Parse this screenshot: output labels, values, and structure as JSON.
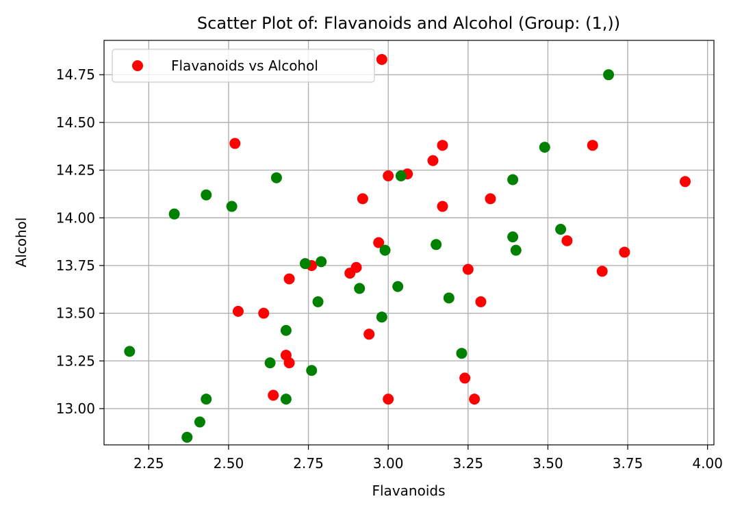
{
  "chart_data": {
    "type": "scatter",
    "title": "Scatter Plot of: Flavanoids and Alcohol (Group: (1,))",
    "xlabel": "Flavanoids",
    "ylabel": "Alcohol",
    "xlim": [
      2.11,
      4.02
    ],
    "ylim": [
      12.81,
      14.93
    ],
    "xticks": [
      2.25,
      2.5,
      2.75,
      3.0,
      3.25,
      3.5,
      3.75,
      4.0
    ],
    "xtick_labels": [
      "2.25",
      "2.50",
      "2.75",
      "3.00",
      "3.25",
      "3.50",
      "3.75",
      "4.00"
    ],
    "yticks": [
      13.0,
      13.25,
      13.5,
      13.75,
      14.0,
      14.25,
      14.5,
      14.75
    ],
    "ytick_labels": [
      "13.00",
      "13.25",
      "13.50",
      "13.75",
      "14.00",
      "14.25",
      "14.50",
      "14.75"
    ],
    "grid": true,
    "legend": {
      "placement": "top-left",
      "entries": [
        "Flavanoids vs Alcohol"
      ]
    },
    "series": [
      {
        "name": "Flavanoids vs Alcohol",
        "color": "#ff0000",
        "points": [
          [
            2.98,
            14.83
          ],
          [
            2.52,
            14.39
          ],
          [
            3.17,
            14.38
          ],
          [
            3.64,
            14.38
          ],
          [
            3.14,
            14.3
          ],
          [
            3.06,
            14.23
          ],
          [
            3.0,
            14.22
          ],
          [
            3.93,
            14.19
          ],
          [
            2.92,
            14.1
          ],
          [
            3.32,
            14.1
          ],
          [
            3.17,
            14.06
          ],
          [
            2.97,
            13.87
          ],
          [
            3.56,
            13.88
          ],
          [
            3.74,
            13.82
          ],
          [
            2.76,
            13.75
          ],
          [
            2.9,
            13.74
          ],
          [
            2.88,
            13.71
          ],
          [
            3.25,
            13.73
          ],
          [
            3.67,
            13.72
          ],
          [
            2.69,
            13.68
          ],
          [
            3.29,
            13.56
          ],
          [
            2.53,
            13.51
          ],
          [
            2.61,
            13.5
          ],
          [
            2.94,
            13.39
          ],
          [
            2.68,
            13.28
          ],
          [
            2.69,
            13.24
          ],
          [
            3.24,
            13.16
          ],
          [
            2.64,
            13.07
          ],
          [
            3.0,
            13.05
          ],
          [
            3.27,
            13.05
          ]
        ]
      },
      {
        "color": "#008000",
        "points": [
          [
            3.69,
            14.75
          ],
          [
            3.49,
            14.37
          ],
          [
            2.65,
            14.21
          ],
          [
            3.04,
            14.22
          ],
          [
            3.39,
            14.2
          ],
          [
            2.43,
            14.12
          ],
          [
            2.51,
            14.06
          ],
          [
            2.33,
            14.02
          ],
          [
            3.54,
            13.94
          ],
          [
            3.39,
            13.9
          ],
          [
            3.15,
            13.86
          ],
          [
            2.99,
            13.83
          ],
          [
            3.4,
            13.83
          ],
          [
            2.74,
            13.76
          ],
          [
            2.79,
            13.77
          ],
          [
            3.03,
            13.64
          ],
          [
            2.91,
            13.63
          ],
          [
            3.19,
            13.58
          ],
          [
            2.78,
            13.56
          ],
          [
            2.98,
            13.48
          ],
          [
            2.68,
            13.41
          ],
          [
            2.19,
            13.3
          ],
          [
            3.23,
            13.29
          ],
          [
            2.63,
            13.24
          ],
          [
            2.76,
            13.2
          ],
          [
            2.43,
            13.05
          ],
          [
            2.68,
            13.05
          ],
          [
            2.41,
            12.93
          ],
          [
            2.37,
            12.85
          ]
        ]
      }
    ]
  }
}
